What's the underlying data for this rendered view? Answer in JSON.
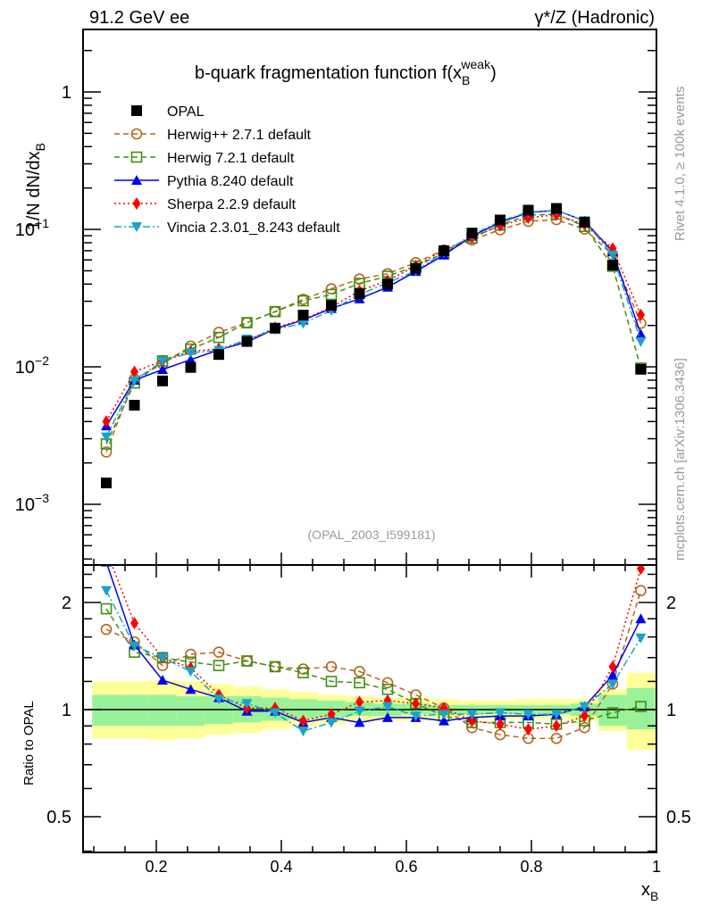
{
  "header": {
    "left": "91.2 GeV ee",
    "right": "γ*/Z (Hadronic)"
  },
  "side_labels": {
    "rivet": "Rivet 4.1.0, ≥ 100k events",
    "mcplots": "mcplots.cern.ch [arXiv:1306.3436]"
  },
  "chart_data": {
    "type": "line",
    "title": {
      "prefix": "b-quark fragmentation function f(x",
      "sub": "B",
      "sup": "weak",
      "suffix": ")"
    },
    "ylabel": {
      "main": "1/N  dN/dx",
      "sub": "B"
    },
    "ratio_ylabel": "Ratio to OPAL",
    "xlabel": {
      "main": "x",
      "sub": "B"
    },
    "analysis_label": "(OPAL_2003_I599181)",
    "xlim": [
      0.083,
      1.0
    ],
    "ylim": [
      0.00036,
      2.85
    ],
    "ylog": true,
    "ratio_ylim": [
      0.4,
      2.55
    ],
    "x_ticks": [
      {
        "value": 0.2,
        "label": "0.2"
      },
      {
        "value": 0.4,
        "label": "0.4"
      },
      {
        "value": 0.6,
        "label": "0.6"
      },
      {
        "value": 0.8,
        "label": "0.8"
      },
      {
        "value": 1.0,
        "label": "1"
      }
    ],
    "y_ticks": [
      {
        "value": 1,
        "label": "1",
        "exp": ""
      },
      {
        "value": 0.1,
        "label": "10",
        "exp": "−1"
      },
      {
        "value": 0.01,
        "label": "10",
        "exp": "−2"
      },
      {
        "value": 0.001,
        "label": "10",
        "exp": "−3"
      }
    ],
    "ratio_ticks": [
      {
        "value": 2,
        "label": "2"
      },
      {
        "value": 1,
        "label": "1"
      },
      {
        "value": 0.5,
        "label": "0.5"
      }
    ],
    "legend_position": "top-left",
    "x": [
      0.12,
      0.165,
      0.21,
      0.255,
      0.3,
      0.345,
      0.39,
      0.435,
      0.48,
      0.525,
      0.57,
      0.615,
      0.66,
      0.705,
      0.75,
      0.795,
      0.84,
      0.885,
      0.93,
      0.975
    ],
    "bin_half_width": 0.0225,
    "data": {
      "name": "OPAL",
      "color": "#000000",
      "values": [
        0.00143,
        0.00526,
        0.0079,
        0.0099,
        0.0123,
        0.0153,
        0.0191,
        0.0238,
        0.028,
        0.034,
        0.04,
        0.052,
        0.07,
        0.094,
        0.117,
        0.138,
        0.142,
        0.113,
        0.055,
        0.0096
      ],
      "band_inner": [
        [
          0.9,
          1.1
        ],
        [
          0.9,
          1.1
        ],
        [
          0.9,
          1.1
        ],
        [
          0.9,
          1.09
        ],
        [
          0.91,
          1.09
        ],
        [
          0.92,
          1.09
        ],
        [
          0.93,
          1.08
        ],
        [
          0.94,
          1.07
        ],
        [
          0.95,
          1.06
        ],
        [
          0.96,
          1.05
        ],
        [
          0.96,
          1.04
        ],
        [
          0.97,
          1.04
        ],
        [
          0.97,
          1.03
        ],
        [
          0.97,
          1.03
        ],
        [
          0.97,
          1.03
        ],
        [
          0.97,
          1.03
        ],
        [
          0.97,
          1.03
        ],
        [
          0.96,
          1.04
        ],
        [
          0.9,
          1.1
        ],
        [
          0.88,
          1.15
        ]
      ],
      "band_outer": [
        [
          0.83,
          1.2
        ],
        [
          0.83,
          1.2
        ],
        [
          0.82,
          1.21
        ],
        [
          0.83,
          1.2
        ],
        [
          0.85,
          1.18
        ],
        [
          0.86,
          1.16
        ],
        [
          0.88,
          1.14
        ],
        [
          0.9,
          1.12
        ],
        [
          0.91,
          1.1
        ],
        [
          0.92,
          1.09
        ],
        [
          0.93,
          1.08
        ],
        [
          0.93,
          1.08
        ],
        [
          0.94,
          1.07
        ],
        [
          0.94,
          1.06
        ],
        [
          0.94,
          1.06
        ],
        [
          0.94,
          1.07
        ],
        [
          0.94,
          1.07
        ],
        [
          0.93,
          1.07
        ],
        [
          0.87,
          1.14
        ],
        [
          0.77,
          1.27
        ]
      ]
    },
    "series": [
      {
        "name": "Herwig++ 2.7.1 default",
        "color": "#b5651d",
        "marker": "open-circle",
        "line": "dashed",
        "ratio": [
          1.68,
          1.55,
          1.33,
          1.43,
          1.45,
          1.37,
          1.32,
          1.3,
          1.32,
          1.28,
          1.19,
          1.1,
          1.01,
          0.89,
          0.85,
          0.83,
          0.83,
          0.89,
          1.18,
          2.16
        ]
      },
      {
        "name": "Herwig 7.2.1 default",
        "color": "#3f8f10",
        "marker": "open-square",
        "line": "dashed",
        "ratio": [
          1.92,
          1.45,
          1.4,
          1.36,
          1.33,
          1.37,
          1.32,
          1.27,
          1.2,
          1.19,
          1.14,
          1.04,
          0.96,
          0.92,
          0.92,
          0.92,
          0.91,
          0.93,
          0.98,
          1.02
        ]
      },
      {
        "name": "Pythia 8.240 default",
        "color": "#0000ee",
        "marker": "triangle-up",
        "line": "solid",
        "ratio": [
          2.6,
          1.52,
          1.21,
          1.14,
          1.08,
          0.99,
          0.99,
          0.92,
          0.95,
          0.92,
          0.95,
          0.95,
          0.93,
          0.95,
          0.96,
          0.96,
          0.97,
          1.02,
          1.25,
          1.8
        ]
      },
      {
        "name": "Sherpa 2.2.9 default",
        "color": "#ff0000",
        "marker": "diamond",
        "line": "dotted",
        "ratio": [
          2.8,
          1.75,
          1.4,
          1.31,
          1.1,
          1.01,
          1.01,
          0.93,
          0.97,
          1.05,
          1.06,
          1.04,
          1.01,
          0.93,
          0.91,
          0.88,
          0.9,
          0.96,
          1.32,
          2.49
        ]
      },
      {
        "name": "Vincia 2.3.01_8.243 default",
        "color": "#1aa3c8",
        "marker": "triangle-down",
        "line": "dashdot",
        "ratio": [
          2.16,
          1.51,
          1.4,
          1.28,
          1.07,
          1.04,
          0.98,
          0.87,
          0.92,
          0.99,
          1.02,
          0.96,
          0.97,
          0.97,
          0.98,
          0.97,
          0.97,
          1.02,
          1.18,
          1.59
        ]
      }
    ]
  }
}
